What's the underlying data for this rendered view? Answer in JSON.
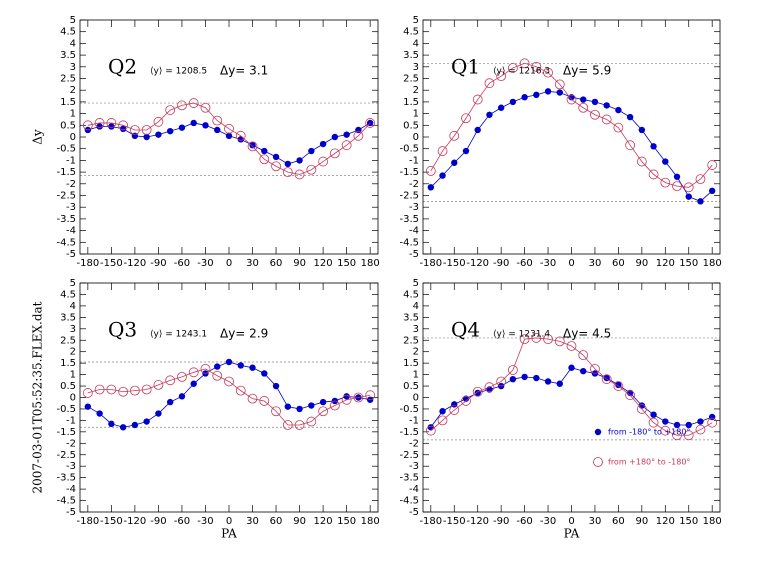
{
  "chart_data": [
    {
      "type": "line",
      "title": "Q2",
      "annotation": "⟨y⟩ = 1208.5",
      "delta_label": "Δy= 3.1",
      "ylabel": "Δy",
      "x": [
        -180,
        -165,
        -150,
        -135,
        -120,
        -105,
        -90,
        -75,
        -60,
        -45,
        -30,
        -15,
        0,
        15,
        30,
        45,
        60,
        75,
        90,
        105,
        120,
        135,
        150,
        165,
        180
      ],
      "series": [
        {
          "color": "#0000cc",
          "marker": "filled",
          "values": [
            0.3,
            0.45,
            0.45,
            0.35,
            0.05,
            0.0,
            0.1,
            0.25,
            0.4,
            0.6,
            0.5,
            0.3,
            0.05,
            -0.1,
            -0.35,
            -0.6,
            -0.85,
            -1.15,
            -1.0,
            -0.6,
            -0.3,
            0.0,
            0.1,
            0.3,
            0.6
          ]
        },
        {
          "color": "#c8385a",
          "marker": "open",
          "values": [
            0.5,
            0.6,
            0.6,
            0.5,
            0.3,
            0.3,
            0.65,
            1.15,
            1.35,
            1.45,
            1.25,
            0.7,
            0.35,
            0.05,
            -0.4,
            -0.95,
            -1.25,
            -1.5,
            -1.6,
            -1.4,
            -1.05,
            -0.7,
            -0.35,
            0.05,
            0.6
          ]
        }
      ],
      "ref_lines": [
        1.45,
        -1.65
      ],
      "xlim": [
        -190,
        190
      ],
      "xticks": [
        -180,
        -150,
        -120,
        -90,
        -60,
        -30,
        0,
        30,
        60,
        90,
        120,
        150,
        180
      ],
      "ylim": [
        -5,
        5
      ],
      "yticks": [
        -5,
        -4.5,
        -4,
        -3.5,
        -3,
        -2.5,
        -2,
        -1.5,
        -1,
        -0.5,
        0,
        0.5,
        1,
        1.5,
        2,
        2.5,
        3,
        3.5,
        4,
        4.5,
        5
      ]
    },
    {
      "type": "line",
      "title": "Q1",
      "annotation": "⟨y⟩ = 1216.3",
      "delta_label": "Δy= 5.9",
      "x": [
        -180,
        -165,
        -150,
        -135,
        -120,
        -105,
        -90,
        -75,
        -60,
        -45,
        -30,
        -15,
        0,
        15,
        30,
        45,
        60,
        75,
        90,
        105,
        120,
        135,
        150,
        165,
        180
      ],
      "series": [
        {
          "color": "#0000cc",
          "marker": "filled",
          "values": [
            -2.15,
            -1.65,
            -1.1,
            -0.6,
            0.3,
            0.95,
            1.25,
            1.5,
            1.7,
            1.8,
            1.95,
            1.9,
            1.7,
            1.6,
            1.5,
            1.35,
            1.15,
            0.85,
            0.3,
            -0.4,
            -1.05,
            -1.7,
            -2.55,
            -2.75,
            -2.3
          ]
        },
        {
          "color": "#c8385a",
          "marker": "open",
          "values": [
            -1.45,
            -0.6,
            0.05,
            0.8,
            1.6,
            2.3,
            2.6,
            2.95,
            3.15,
            3.0,
            2.75,
            2.25,
            1.6,
            1.25,
            0.95,
            0.75,
            0.4,
            -0.35,
            -1.05,
            -1.6,
            -1.95,
            -2.1,
            -2.15,
            -1.8,
            -1.2
          ]
        }
      ],
      "ref_lines": [
        3.15,
        -2.75
      ],
      "xlim": [
        -190,
        190
      ],
      "xticks": [
        -180,
        -150,
        -120,
        -90,
        -60,
        -30,
        0,
        30,
        60,
        90,
        120,
        150,
        180
      ],
      "ylim": [
        -5,
        5
      ],
      "yticks": [
        -5,
        -4.5,
        -4,
        -3.5,
        -3,
        -2.5,
        -2,
        -1.5,
        -1,
        -0.5,
        0,
        0.5,
        1,
        1.5,
        2,
        2.5,
        3,
        3.5,
        4,
        4.5,
        5
      ]
    },
    {
      "type": "line",
      "title": "Q3",
      "annotation": "⟨y⟩ = 1243.1",
      "delta_label": "Δy= 2.9",
      "xlabel": "PA",
      "side_note": "2007-03-01T05:52:35.FLEX.dat",
      "x": [
        -180,
        -165,
        -150,
        -135,
        -120,
        -105,
        -90,
        -75,
        -60,
        -45,
        -30,
        -15,
        0,
        15,
        30,
        45,
        60,
        75,
        90,
        105,
        120,
        135,
        150,
        165,
        180
      ],
      "series": [
        {
          "color": "#0000cc",
          "marker": "filled",
          "values": [
            -0.4,
            -0.7,
            -1.15,
            -1.3,
            -1.2,
            -1.05,
            -0.7,
            -0.2,
            0.05,
            0.6,
            1.05,
            1.35,
            1.55,
            1.4,
            1.3,
            1.05,
            0.5,
            -0.4,
            -0.5,
            -0.35,
            -0.2,
            -0.15,
            0.05,
            0.0,
            -0.1
          ]
        },
        {
          "color": "#c8385a",
          "marker": "open",
          "values": [
            0.2,
            0.35,
            0.35,
            0.25,
            0.3,
            0.35,
            0.55,
            0.75,
            0.9,
            1.1,
            1.25,
            0.95,
            0.7,
            0.3,
            -0.05,
            -0.15,
            -0.6,
            -1.2,
            -1.2,
            -1.05,
            -0.6,
            -0.35,
            -0.1,
            0.0,
            0.1
          ]
        }
      ],
      "ref_lines": [
        1.55,
        -1.3
      ],
      "xlim": [
        -190,
        190
      ],
      "xticks": [
        -180,
        -150,
        -120,
        -90,
        -60,
        -30,
        0,
        30,
        60,
        90,
        120,
        150,
        180
      ],
      "ylim": [
        -5,
        5
      ],
      "yticks": [
        -5,
        -4.5,
        -4,
        -3.5,
        -3,
        -2.5,
        -2,
        -1.5,
        -1,
        -0.5,
        0,
        0.5,
        1,
        1.5,
        2,
        2.5,
        3,
        3.5,
        4,
        4.5,
        5
      ]
    },
    {
      "type": "line",
      "title": "Q4",
      "annotation": "⟨y⟩ = 1231.4",
      "delta_label": "Δy= 4.5",
      "xlabel": "PA",
      "legend": "lower right",
      "x": [
        -180,
        -165,
        -150,
        -135,
        -120,
        -105,
        -90,
        -75,
        -60,
        -45,
        -30,
        -15,
        0,
        15,
        30,
        45,
        60,
        75,
        90,
        105,
        120,
        135,
        150,
        165,
        180
      ],
      "series": [
        {
          "name": "from -180° to +180°",
          "color": "#0000cc",
          "marker": "filled",
          "values": [
            -1.3,
            -0.6,
            -0.3,
            -0.05,
            0.2,
            0.35,
            0.5,
            0.8,
            0.9,
            0.85,
            0.7,
            0.6,
            1.3,
            1.15,
            1.05,
            0.85,
            0.55,
            0.2,
            -0.35,
            -0.75,
            -1.05,
            -1.2,
            -1.2,
            -1.05,
            -0.85
          ]
        },
        {
          "name": "from +180° to -180°",
          "color": "#c8385a",
          "marker": "open",
          "values": [
            -1.45,
            -1.0,
            -0.55,
            -0.15,
            0.25,
            0.45,
            0.7,
            1.2,
            2.55,
            2.6,
            2.55,
            2.45,
            2.25,
            1.85,
            1.25,
            0.8,
            0.5,
            0.1,
            -0.5,
            -1.1,
            -1.45,
            -1.65,
            -1.65,
            -1.4,
            -1.1
          ]
        }
      ],
      "ref_lines": [
        2.6,
        -1.85
      ],
      "xlim": [
        -190,
        190
      ],
      "xticks": [
        -180,
        -150,
        -120,
        -90,
        -60,
        -30,
        0,
        30,
        60,
        90,
        120,
        150,
        180
      ],
      "ylim": [
        -5,
        5
      ],
      "yticks": [
        -5,
        -4.5,
        -4,
        -3.5,
        -3,
        -2.5,
        -2,
        -1.5,
        -1,
        -0.5,
        0,
        0.5,
        1,
        1.5,
        2,
        2.5,
        3,
        3.5,
        4,
        4.5,
        5
      ]
    }
  ]
}
